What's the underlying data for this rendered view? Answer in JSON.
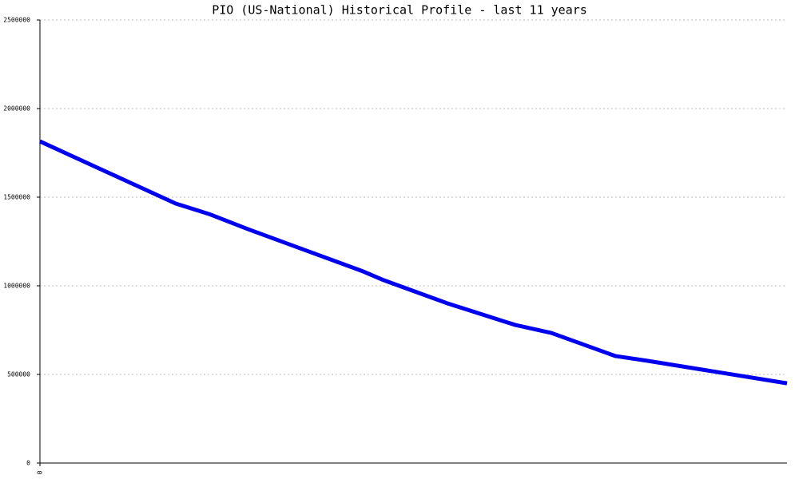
{
  "chart_data": {
    "type": "line",
    "title": "PIO (US-National) Historical Profile - last 11 years",
    "x": [
      0,
      2.0,
      2.49,
      3.06,
      4.76,
      5.06,
      6.0,
      7.0,
      7.53,
      8.47,
      8.94,
      11
    ],
    "series": [
      {
        "color": "#0000ee",
        "values": [
          1815000,
          1464000,
          1405000,
          1320000,
          1081000,
          1032000,
          901000,
          779000,
          734000,
          604000,
          577000,
          450000
        ]
      }
    ],
    "xlim": [
      0,
      11
    ],
    "xticks": [
      0
    ],
    "ylim": [
      0,
      2500000
    ],
    "yticks": [
      0,
      500000,
      1000000,
      1500000,
      2000000,
      2500000
    ],
    "grid": true
  }
}
